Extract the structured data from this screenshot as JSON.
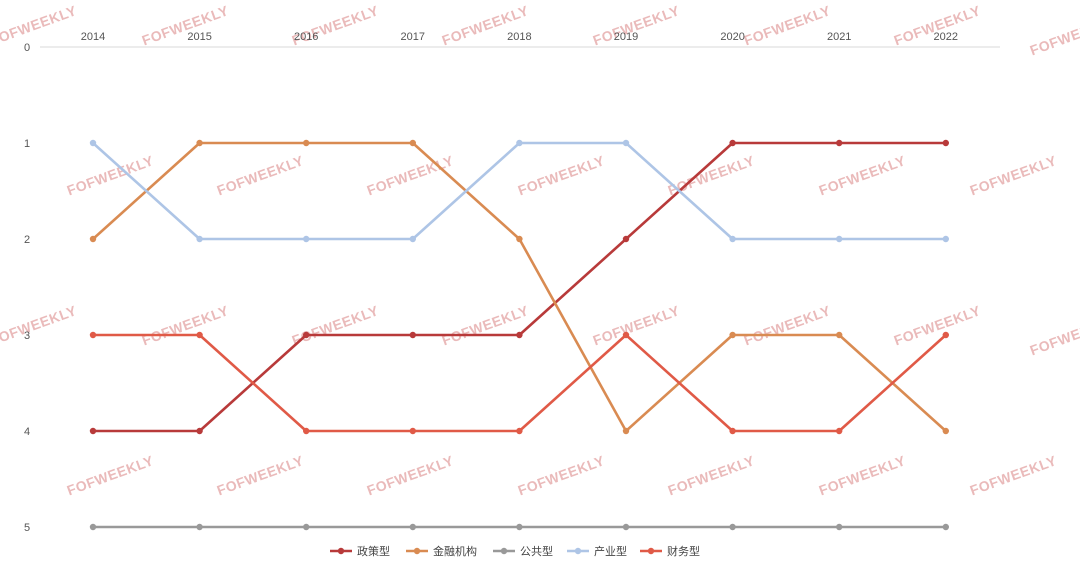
{
  "watermark": "FOFWEEKLY",
  "chart_data": {
    "type": "line",
    "x": [
      "2014",
      "2015",
      "2016",
      "2017",
      "2018",
      "2019",
      "2020",
      "2021",
      "2022"
    ],
    "y_ticks": [
      "0",
      "1",
      "2",
      "3",
      "4",
      "5"
    ],
    "ylim": [
      0,
      5
    ],
    "y_inverted": true,
    "x_axis_position": "top",
    "legend_position": "bottom",
    "grid": false,
    "title": "",
    "series": [
      {
        "name": "政策型",
        "color": "#b83a3a",
        "values": [
          4,
          4,
          3,
          3,
          3,
          2,
          1,
          1,
          1
        ]
      },
      {
        "name": "金融机构",
        "color": "#d98b52",
        "values": [
          2,
          1,
          1,
          1,
          2,
          4,
          3,
          3,
          4
        ]
      },
      {
        "name": "公共型",
        "color": "#999999",
        "values": [
          5,
          5,
          5,
          5,
          5,
          5,
          5,
          5,
          5
        ]
      },
      {
        "name": "产业型",
        "color": "#aec5e6",
        "values": [
          1,
          2,
          2,
          2,
          1,
          1,
          2,
          2,
          2
        ]
      },
      {
        "name": "财务型",
        "color": "#e05a47",
        "values": [
          3,
          3,
          4,
          4,
          4,
          3,
          4,
          4,
          3
        ]
      }
    ]
  }
}
